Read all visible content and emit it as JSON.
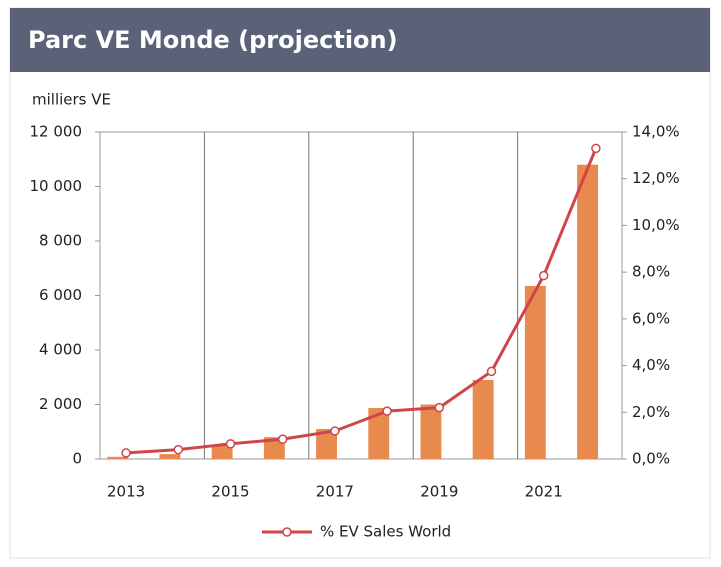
{
  "chart_data": {
    "type": "bar-line",
    "title": "Parc VE Monde (projection)",
    "y_label": "milliers VE",
    "categories": [
      "2013",
      null,
      "2015",
      null,
      "2017",
      null,
      "2019",
      null,
      "2021",
      null
    ],
    "series": [
      {
        "type": "bar",
        "color": "#e8894d",
        "values": [
          80,
          180,
          500,
          800,
          1100,
          1870,
          2000,
          2900,
          6350,
          10800
        ]
      },
      {
        "type": "line",
        "name": "% EV Sales World",
        "color": "#d0454a",
        "axis": "y2",
        "values": [
          0.26,
          0.4,
          0.65,
          0.85,
          1.2,
          2.05,
          2.2,
          3.75,
          7.85,
          13.3
        ]
      }
    ],
    "ylim": [
      0,
      12000
    ],
    "yticks": [
      0,
      {
        "value": 2000,
        "label": "2 000"
      },
      {
        "value": 4000,
        "label": "4 000"
      },
      {
        "value": 6000,
        "label": "6 000"
      },
      {
        "value": 8000,
        "label": "8 000"
      },
      {
        "value": 10000,
        "label": "10 000"
      },
      {
        "value": 12000,
        "label": "12 000"
      }
    ],
    "y2lim": [
      0,
      14
    ],
    "y2ticks": [
      {
        "value": 0,
        "label": "0,0%"
      },
      {
        "value": 2,
        "label": "2,0%"
      },
      {
        "value": 4,
        "label": "4,0%"
      },
      {
        "value": 6,
        "label": "6,0%"
      },
      {
        "value": 8,
        "label": "8,0%"
      },
      {
        "value": 10,
        "label": "10,0%"
      },
      {
        "value": 12,
        "label": "12,0%"
      },
      {
        "value": 14,
        "label": "14,0%"
      }
    ],
    "legend": "bottom"
  }
}
